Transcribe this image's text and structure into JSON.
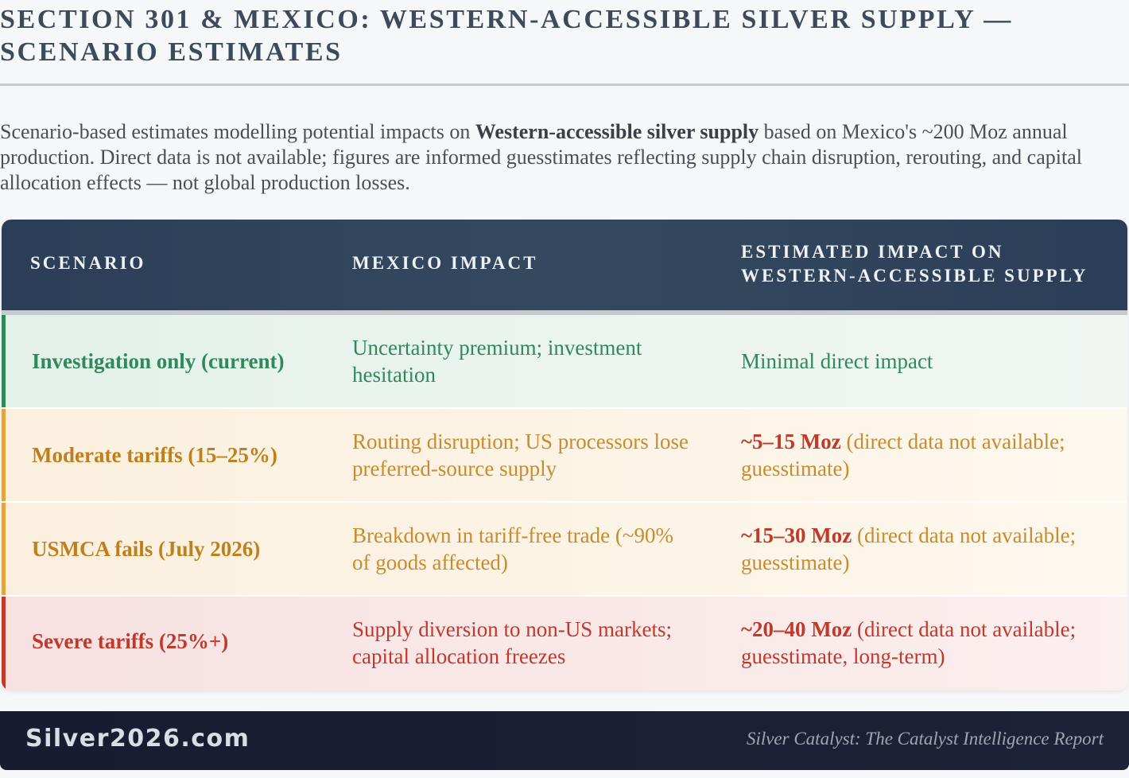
{
  "title": "SECTION 301 & MEXICO: WESTERN-ACCESSIBLE SILVER SUPPLY — SCENARIO ESTIMATES",
  "intro": {
    "before": "Scenario-based estimates modelling potential impacts on ",
    "bold": "Western-accessible silver supply",
    "after": " based on Mexico's ~200 Moz annual production. Direct data is not available; figures are informed guesstimates reflecting supply chain disruption, rerouting, and capital allocation effects — not global production losses."
  },
  "table": {
    "headers": {
      "scenario": "SCENARIO",
      "impact": "MEXICO IMPACT",
      "estimate": "ESTIMATED IMPACT ON WESTERN-ACCESSIBLE SUPPLY"
    },
    "rows": [
      {
        "scenario": "Investigation only (current)",
        "impact": "Uncertainty premium; investment hesitation",
        "estimate_value": "",
        "estimate_note": "Minimal direct impact",
        "accent": "#2e8a5a"
      },
      {
        "scenario": "Moderate tariffs (15–25%)",
        "impact": "Routing disruption; US processors lose preferred-source supply",
        "estimate_value": "~5–15 Moz",
        "estimate_note": " (direct data not available; guesstimate)",
        "accent": "#e0a53c"
      },
      {
        "scenario": "USMCA fails (July 2026)",
        "impact": "Breakdown in tariff-free trade (~90% of goods affected)",
        "estimate_value": "~15–30 Moz",
        "estimate_note": " (direct data not available; guesstimate)",
        "accent": "#e0a53c"
      },
      {
        "scenario": "Severe tariffs (25%+)",
        "impact": "Supply diversion to non-US markets; capital allocation freezes",
        "estimate_value": "~20–40 Moz",
        "estimate_note": " (direct data not available; guesstimate, long-term)",
        "accent": "#c0392b"
      }
    ]
  },
  "footer": {
    "brand": "Silver2026.com",
    "report": "Silver Catalyst: The Catalyst Intelligence Report"
  }
}
